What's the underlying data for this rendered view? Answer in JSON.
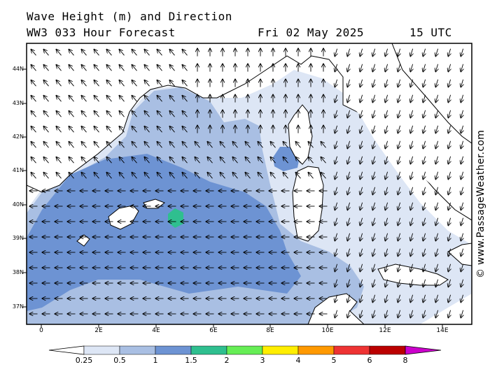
{
  "header": {
    "title": "Wave Height (m) and Direction",
    "model": "WW3 033 Hour Forecast",
    "date": "Fri 02 May 2025",
    "time": "15 UTC"
  },
  "credit": "© www.PassageWeather.com",
  "map": {
    "lat_labels": [
      "44N",
      "43N",
      "42N",
      "41N",
      "40N",
      "39N",
      "38N",
      "37N"
    ],
    "lon_labels": [
      "0",
      "2E",
      "4E",
      "6E",
      "8E",
      "10E",
      "12E",
      "14E"
    ]
  },
  "legend": {
    "labels": [
      "0.25",
      "0.5",
      "1",
      "1.5",
      "2",
      "3",
      "4",
      "5",
      "6",
      "8"
    ],
    "colors": [
      "#ffffff",
      "#dde6f5",
      "#a9bfe3",
      "#6d93d3",
      "#2fbf8f",
      "#66ee55",
      "#ffee00",
      "#ff9900",
      "#ee3333",
      "#bb0000",
      "#cc00cc"
    ]
  }
}
